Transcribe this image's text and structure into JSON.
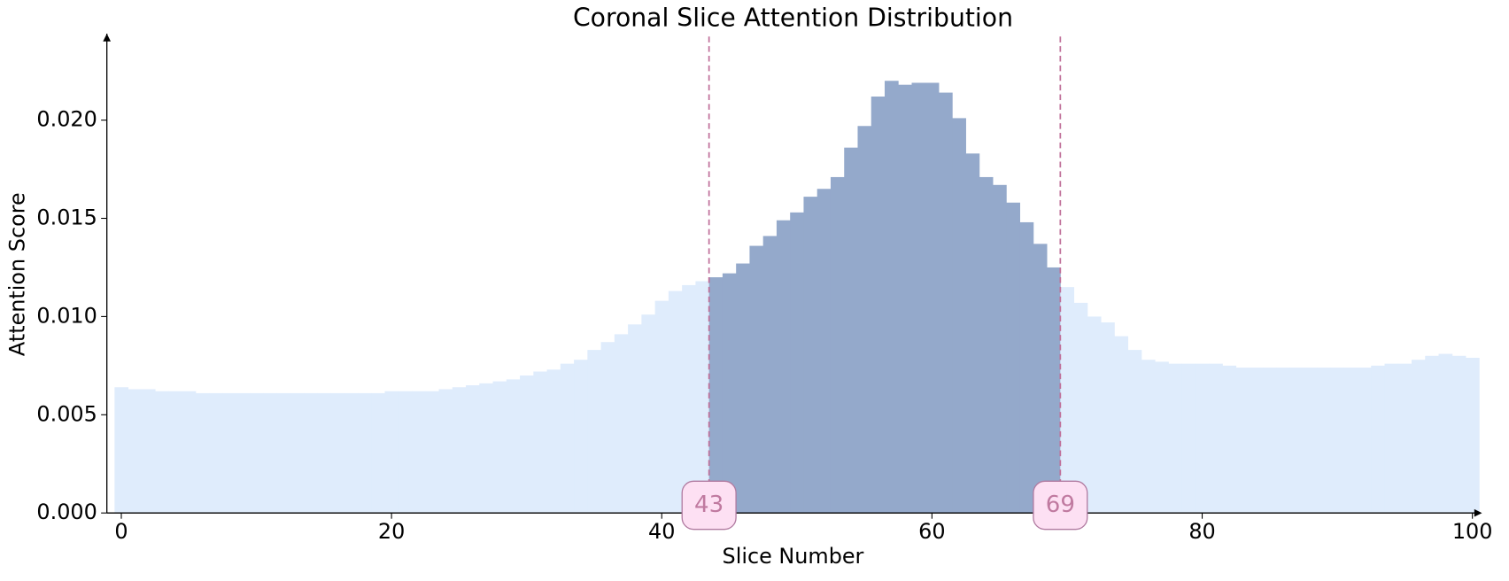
{
  "chart_data": {
    "type": "bar",
    "title": "Coronal Slice Attention Distribution",
    "x_label": "Slice Number",
    "y_label": "Attention Score",
    "x": [
      0,
      1,
      2,
      3,
      4,
      5,
      6,
      7,
      8,
      9,
      10,
      11,
      12,
      13,
      14,
      15,
      16,
      17,
      18,
      19,
      20,
      21,
      22,
      23,
      24,
      25,
      26,
      27,
      28,
      29,
      30,
      31,
      32,
      33,
      34,
      35,
      36,
      37,
      38,
      39,
      40,
      41,
      42,
      43,
      44,
      45,
      46,
      47,
      48,
      49,
      50,
      51,
      52,
      53,
      54,
      55,
      56,
      57,
      58,
      59,
      60,
      61,
      62,
      63,
      64,
      65,
      66,
      67,
      68,
      69,
      70,
      71,
      72,
      73,
      74,
      75,
      76,
      77,
      78,
      79,
      80,
      81,
      82,
      83,
      84,
      85,
      86,
      87,
      88,
      89,
      90,
      91,
      92,
      93,
      94,
      95,
      96,
      97,
      98,
      99,
      100
    ],
    "values": [
      0.0064,
      0.0063,
      0.0063,
      0.0062,
      0.0062,
      0.0062,
      0.0061,
      0.0061,
      0.0061,
      0.0061,
      0.0061,
      0.0061,
      0.0061,
      0.0061,
      0.0061,
      0.0061,
      0.0061,
      0.0061,
      0.0061,
      0.0061,
      0.0062,
      0.0062,
      0.0062,
      0.0062,
      0.0063,
      0.0064,
      0.0065,
      0.0066,
      0.0067,
      0.0068,
      0.007,
      0.0072,
      0.0073,
      0.0076,
      0.0078,
      0.0083,
      0.0087,
      0.0091,
      0.0096,
      0.0101,
      0.0108,
      0.0113,
      0.0116,
      0.0118,
      0.012,
      0.0122,
      0.0127,
      0.0136,
      0.0141,
      0.0149,
      0.0153,
      0.0161,
      0.0165,
      0.0171,
      0.0186,
      0.0197,
      0.0212,
      0.022,
      0.0218,
      0.0219,
      0.0219,
      0.0214,
      0.0201,
      0.0183,
      0.0171,
      0.0167,
      0.0158,
      0.0148,
      0.0137,
      0.0125,
      0.0115,
      0.0107,
      0.01,
      0.0097,
      0.009,
      0.0083,
      0.0078,
      0.0077,
      0.0076,
      0.0076,
      0.0076,
      0.0076,
      0.0075,
      0.0074,
      0.0074,
      0.0074,
      0.0074,
      0.0074,
      0.0074,
      0.0074,
      0.0074,
      0.0074,
      0.0074,
      0.0075,
      0.0076,
      0.0076,
      0.0078,
      0.008,
      0.0081,
      0.008,
      0.0079
    ],
    "color": "#dfecfc",
    "highlight_color": "#94a9cb",
    "marker_color": "#c0709a",
    "highlight_range": [
      43,
      69
    ],
    "xlim": [
      -1.07,
      100
    ],
    "xticks": [
      0,
      20,
      40,
      60,
      80,
      100
    ],
    "ylim": [
      0,
      0.0244
    ],
    "yticks": [
      {
        "value": 0,
        "label": "0.000"
      },
      {
        "value": 0.005,
        "label": "0.005"
      },
      {
        "value": 0.01,
        "label": "0.010"
      },
      {
        "value": 0.015,
        "label": "0.015"
      },
      {
        "value": 0.02,
        "label": "0.020"
      }
    ]
  }
}
